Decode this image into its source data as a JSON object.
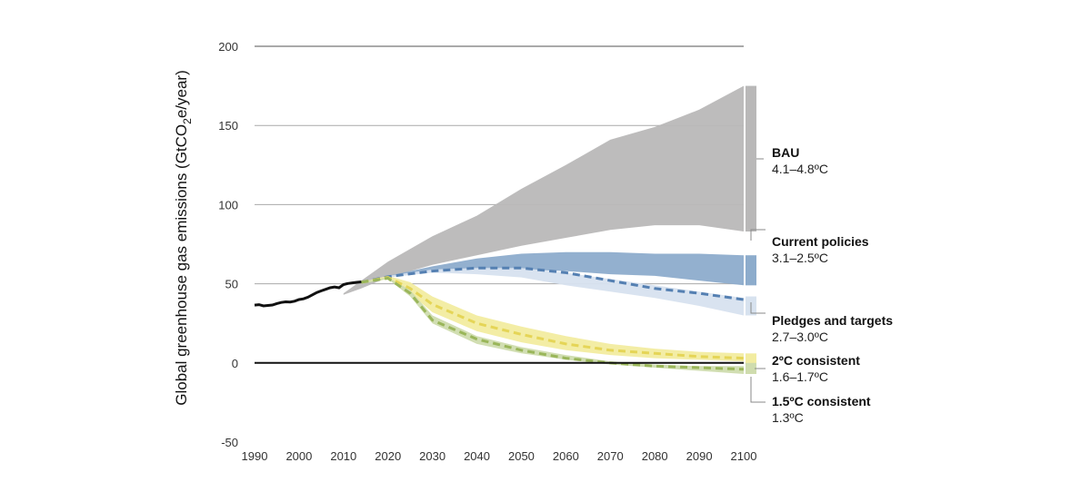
{
  "chart_data": {
    "type": "area",
    "ylabel_parts": [
      "Global greenhouse gas emissions (GtCO",
      "2",
      "e/year)"
    ],
    "xlim": [
      1990,
      2100
    ],
    "ylim": [
      -50,
      200
    ],
    "x_ticks": [
      1990,
      2000,
      2010,
      2020,
      2030,
      2040,
      2050,
      2060,
      2070,
      2080,
      2090,
      2100
    ],
    "y_ticks": [
      200,
      150,
      100,
      50,
      0,
      -50
    ],
    "historical": {
      "x": [
        1990,
        1991,
        1992,
        1993,
        1994,
        1995,
        1996,
        1997,
        1998,
        1999,
        2000,
        2001,
        2002,
        2003,
        2004,
        2005,
        2006,
        2007,
        2008,
        2009,
        2010,
        2011,
        2012,
        2013,
        2014
      ],
      "y": [
        36.5,
        36.8,
        36.0,
        36.3,
        36.6,
        37.5,
        38.2,
        38.6,
        38.5,
        39.0,
        40.0,
        40.5,
        41.5,
        43.0,
        44.5,
        45.5,
        46.5,
        47.5,
        48.0,
        47.5,
        49.5,
        50.2,
        50.6,
        50.9,
        51.2
      ]
    },
    "series": [
      {
        "name": "BAU",
        "temp": "4.1–4.8ºC",
        "color": "#b9b8b8",
        "x": [
          2010,
          2014,
          2020,
          2030,
          2040,
          2050,
          2060,
          2070,
          2080,
          2090,
          2100
        ],
        "upper": [
          44,
          52,
          64,
          80,
          93,
          110,
          125,
          141,
          149,
          160,
          175
        ],
        "lower": [
          43,
          47,
          54,
          62,
          68,
          74,
          79,
          84,
          87,
          87,
          83
        ],
        "bar": [
          83,
          175
        ]
      },
      {
        "name": "Current policies",
        "temp": "3.1–2.5ºC",
        "color": "#8daccc",
        "x": [
          2014,
          2020,
          2030,
          2040,
          2050,
          2060,
          2070,
          2080,
          2090,
          2100
        ],
        "upper": [
          51,
          55,
          61,
          66,
          69,
          70,
          70,
          69,
          69,
          68
        ],
        "lower": [
          50,
          54,
          58,
          59,
          59,
          58,
          56,
          55,
          52,
          49
        ],
        "bar": [
          49,
          68
        ]
      },
      {
        "name": "Pledges and targets",
        "temp": "2.7–3.0ºC",
        "color": "#d7e2ef",
        "x": [
          2014,
          2020,
          2030,
          2040,
          2050,
          2060,
          2070,
          2080,
          2090,
          2100
        ],
        "upper": [
          51,
          55,
          59,
          60,
          60,
          57,
          53,
          49,
          45,
          41
        ],
        "lower": [
          50,
          54,
          57,
          56,
          54,
          49,
          45,
          41,
          36,
          30
        ],
        "median": [
          51,
          54.5,
          58,
          60,
          60,
          57,
          52,
          47,
          44,
          40
        ],
        "median_color": "#5580b2",
        "bar": [
          30,
          42
        ]
      },
      {
        "name": "2ºC consistent",
        "temp": "1.6–1.7ºC",
        "color": "#f2eca0",
        "x": [
          2014,
          2020,
          2025,
          2030,
          2040,
          2050,
          2060,
          2070,
          2080,
          2090,
          2100
        ],
        "upper": [
          51,
          55,
          51,
          42,
          30,
          23,
          17,
          12,
          9,
          7,
          6
        ],
        "lower": [
          50,
          53,
          44,
          32,
          20,
          13,
          8,
          5,
          3,
          2,
          1
        ],
        "median": [
          51,
          54,
          47,
          37,
          25,
          18,
          12,
          8,
          6,
          4,
          3
        ],
        "median_color": "#e5d557",
        "bar": [
          -1,
          6
        ]
      },
      {
        "name": "1.5ºC consistent",
        "temp": "1.3ºC",
        "color": "#cfdcae",
        "x": [
          2014,
          2020,
          2025,
          2030,
          2040,
          2050,
          2060,
          2070,
          2080,
          2090,
          2100
        ],
        "upper": [
          51,
          54,
          46,
          30,
          17,
          10,
          5,
          1,
          -1,
          -2,
          -2
        ],
        "lower": [
          50,
          53,
          42,
          25,
          12,
          6,
          2,
          -1,
          -3,
          -5,
          -7
        ],
        "median": [
          51,
          53.5,
          44,
          27,
          15,
          8,
          3,
          0,
          -2,
          -3,
          -4
        ],
        "median_color": "#9ab65a",
        "bar": [
          -7,
          0
        ]
      }
    ]
  }
}
